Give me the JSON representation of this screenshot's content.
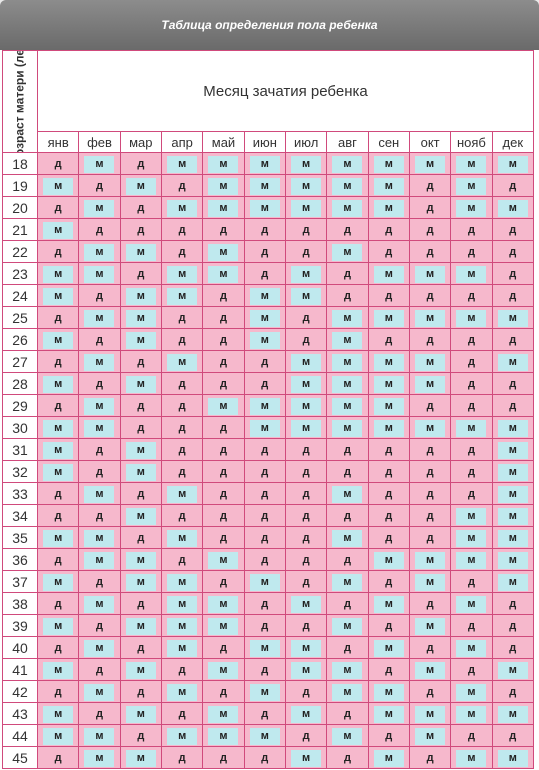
{
  "title": "Таблица определения пола ребенка",
  "corner_label": "Возраст матери (лет)",
  "months_title": "Месяц зачатия ребенка",
  "months": [
    "янв",
    "фев",
    "мар",
    "апр",
    "май",
    "июн",
    "июл",
    "авг",
    "сен",
    "окт",
    "нояб",
    "дек"
  ],
  "rows": [
    {
      "age": "18",
      "cells": [
        "д",
        "м",
        "д",
        "м",
        "м",
        "м",
        "м",
        "м",
        "м",
        "м",
        "м",
        "м"
      ]
    },
    {
      "age": "19",
      "cells": [
        "м",
        "д",
        "м",
        "д",
        "м",
        "м",
        "м",
        "м",
        "м",
        "д",
        "м",
        "д"
      ]
    },
    {
      "age": "20",
      "cells": [
        "д",
        "м",
        "д",
        "м",
        "м",
        "м",
        "м",
        "м",
        "м",
        "д",
        "м",
        "м"
      ]
    },
    {
      "age": "21",
      "cells": [
        "м",
        "д",
        "д",
        "д",
        "д",
        "д",
        "д",
        "д",
        "д",
        "д",
        "д",
        "д"
      ]
    },
    {
      "age": "22",
      "cells": [
        "д",
        "м",
        "м",
        "д",
        "м",
        "д",
        "д",
        "м",
        "д",
        "д",
        "д",
        "д"
      ]
    },
    {
      "age": "23",
      "cells": [
        "м",
        "м",
        "д",
        "м",
        "м",
        "д",
        "м",
        "д",
        "м",
        "м",
        "м",
        "д"
      ]
    },
    {
      "age": "24",
      "cells": [
        "м",
        "д",
        "м",
        "м",
        "д",
        "м",
        "м",
        "д",
        "д",
        "д",
        "д",
        "д"
      ]
    },
    {
      "age": "25",
      "cells": [
        "д",
        "м",
        "м",
        "д",
        "д",
        "м",
        "д",
        "м",
        "м",
        "м",
        "м",
        "м"
      ]
    },
    {
      "age": "26",
      "cells": [
        "м",
        "д",
        "м",
        "д",
        "д",
        "м",
        "д",
        "м",
        "д",
        "д",
        "д",
        "д"
      ]
    },
    {
      "age": "27",
      "cells": [
        "д",
        "м",
        "д",
        "м",
        "д",
        "д",
        "м",
        "м",
        "м",
        "м",
        "д",
        "м"
      ]
    },
    {
      "age": "28",
      "cells": [
        "м",
        "д",
        "м",
        "д",
        "д",
        "д",
        "м",
        "м",
        "м",
        "м",
        "д",
        "д"
      ]
    },
    {
      "age": "29",
      "cells": [
        "д",
        "м",
        "д",
        "д",
        "м",
        "м",
        "м",
        "м",
        "м",
        "д",
        "д",
        "д"
      ]
    },
    {
      "age": "30",
      "cells": [
        "м",
        "м",
        "д",
        "д",
        "д",
        "м",
        "м",
        "м",
        "м",
        "м",
        "м",
        "м"
      ]
    },
    {
      "age": "31",
      "cells": [
        "м",
        "д",
        "м",
        "д",
        "д",
        "д",
        "д",
        "д",
        "д",
        "д",
        "д",
        "м"
      ]
    },
    {
      "age": "32",
      "cells": [
        "м",
        "д",
        "м",
        "д",
        "д",
        "д",
        "д",
        "д",
        "д",
        "д",
        "д",
        "м"
      ]
    },
    {
      "age": "33",
      "cells": [
        "д",
        "м",
        "д",
        "м",
        "д",
        "д",
        "д",
        "м",
        "д",
        "д",
        "д",
        "м"
      ]
    },
    {
      "age": "34",
      "cells": [
        "д",
        "д",
        "м",
        "д",
        "д",
        "д",
        "д",
        "д",
        "д",
        "д",
        "м",
        "м"
      ]
    },
    {
      "age": "35",
      "cells": [
        "м",
        "м",
        "д",
        "м",
        "д",
        "д",
        "д",
        "м",
        "д",
        "д",
        "м",
        "м"
      ]
    },
    {
      "age": "36",
      "cells": [
        "д",
        "м",
        "м",
        "д",
        "м",
        "д",
        "д",
        "д",
        "м",
        "м",
        "м",
        "м"
      ]
    },
    {
      "age": "37",
      "cells": [
        "м",
        "д",
        "м",
        "м",
        "д",
        "м",
        "д",
        "м",
        "д",
        "м",
        "д",
        "м"
      ]
    },
    {
      "age": "38",
      "cells": [
        "д",
        "м",
        "д",
        "м",
        "м",
        "д",
        "м",
        "д",
        "м",
        "д",
        "м",
        "д"
      ]
    },
    {
      "age": "39",
      "cells": [
        "м",
        "д",
        "м",
        "м",
        "м",
        "д",
        "д",
        "м",
        "д",
        "м",
        "д",
        "д"
      ]
    },
    {
      "age": "40",
      "cells": [
        "д",
        "м",
        "д",
        "м",
        "д",
        "м",
        "м",
        "д",
        "м",
        "д",
        "м",
        "д"
      ]
    },
    {
      "age": "41",
      "cells": [
        "м",
        "д",
        "м",
        "д",
        "м",
        "д",
        "м",
        "м",
        "д",
        "м",
        "д",
        "м"
      ]
    },
    {
      "age": "42",
      "cells": [
        "д",
        "м",
        "д",
        "м",
        "д",
        "м",
        "д",
        "м",
        "м",
        "д",
        "м",
        "д"
      ]
    },
    {
      "age": "43",
      "cells": [
        "м",
        "д",
        "м",
        "д",
        "м",
        "д",
        "м",
        "д",
        "м",
        "м",
        "м",
        "м"
      ]
    },
    {
      "age": "44",
      "cells": [
        "м",
        "м",
        "д",
        "м",
        "м",
        "м",
        "д",
        "м",
        "д",
        "м",
        "д",
        "д"
      ]
    },
    {
      "age": "45",
      "cells": [
        "д",
        "м",
        "м",
        "д",
        "д",
        "д",
        "м",
        "д",
        "м",
        "д",
        "м",
        "м"
      ]
    }
  ]
}
